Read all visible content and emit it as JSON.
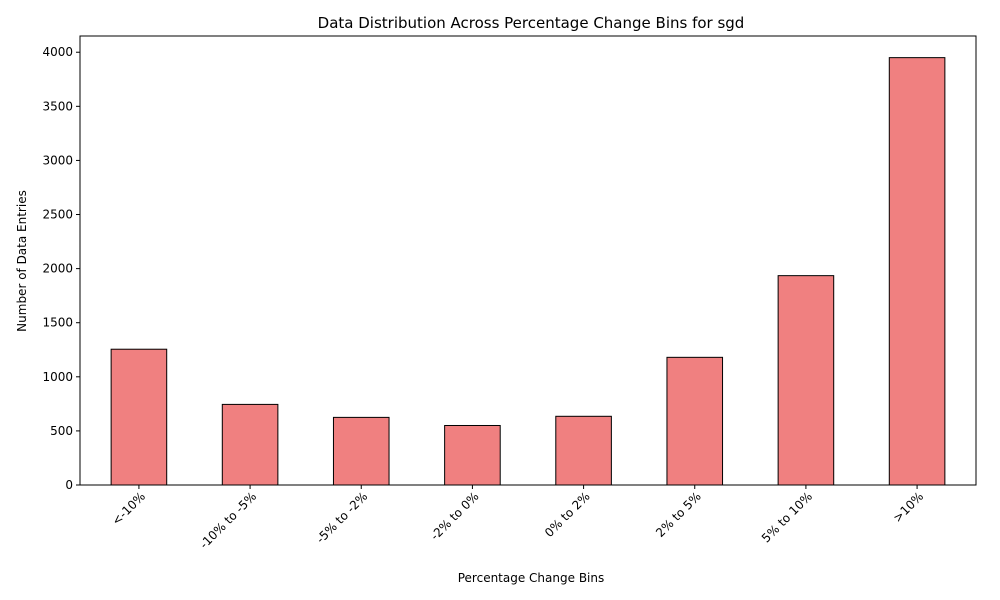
{
  "chart_data": {
    "type": "bar",
    "title": "Data Distribution Across Percentage Change Bins for sgd",
    "xlabel": "Percentage Change Bins",
    "ylabel": "Number of Data Entries",
    "categories": [
      "<-10%",
      "-10% to -5%",
      "-5% to -2%",
      "-2% to 0%",
      "0% to 2%",
      "2% to 5%",
      "5% to 10%",
      ">10%"
    ],
    "values": [
      1255,
      745,
      625,
      550,
      635,
      1180,
      1935,
      3950
    ],
    "ylim": [
      0,
      4150
    ],
    "yticks": [
      0,
      500,
      1000,
      1500,
      2000,
      2500,
      3000,
      3500,
      4000
    ],
    "grid": false,
    "legend": "none",
    "bar_color": "#f08080",
    "edge_color": "#000000"
  }
}
